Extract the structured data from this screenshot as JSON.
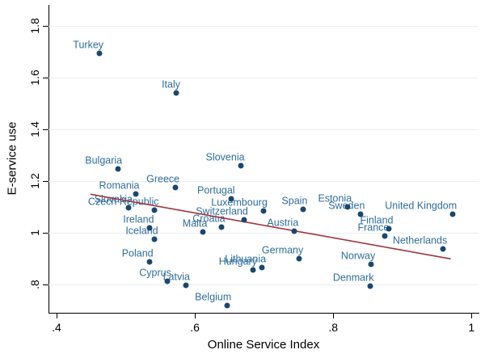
{
  "chart_data": {
    "type": "scatter",
    "title": "",
    "xlabel": "Online Service Index",
    "ylabel": "E-service use",
    "xlim": [
      0.388,
      1.01
    ],
    "ylim": [
      0.692,
      1.882
    ],
    "grid": "horizontal-only",
    "x_ticks": [
      {
        "label": ".4",
        "value": 0.4
      },
      {
        "label": ".6",
        "value": 0.6
      },
      {
        "label": ".8",
        "value": 0.8
      },
      {
        "label": "1",
        "value": 1.0
      }
    ],
    "y_ticks": [
      {
        "label": ".8",
        "value": 0.8
      },
      {
        "label": "1",
        "value": 1.0
      },
      {
        "label": "1.2",
        "value": 1.2
      },
      {
        "label": "1.4",
        "value": 1.4
      },
      {
        "label": "1.6",
        "value": 1.6
      },
      {
        "label": "1.8",
        "value": 1.8
      }
    ],
    "points": [
      {
        "label": "Turkey",
        "x": 0.462,
        "y": 1.696
      },
      {
        "label": "Italy",
        "x": 0.573,
        "y": 1.541
      },
      {
        "label": "Bulgaria",
        "x": 0.489,
        "y": 1.247
      },
      {
        "label": "Slovenia",
        "x": 0.666,
        "y": 1.26
      },
      {
        "label": "Greece",
        "x": 0.572,
        "y": 1.177
      },
      {
        "label": "Romania",
        "x": 0.514,
        "y": 1.151
      },
      {
        "label": "Slovakia",
        "x": 0.504,
        "y": 1.098
      },
      {
        "label": "Czech Republic",
        "x": 0.542,
        "y": 1.088
      },
      {
        "label": "Ireland",
        "x": 0.535,
        "y": 1.02
      },
      {
        "label": "Iceland",
        "x": 0.541,
        "y": 0.976
      },
      {
        "label": "Portugal",
        "x": 0.652,
        "y": 1.132
      },
      {
        "label": "Luxembourg",
        "x": 0.699,
        "y": 1.085
      },
      {
        "label": "Switzerland",
        "x": 0.671,
        "y": 1.051
      },
      {
        "label": "Croatia",
        "x": 0.638,
        "y": 1.023
      },
      {
        "label": "Malta",
        "x": 0.612,
        "y": 1.004
      },
      {
        "label": "Spain",
        "x": 0.757,
        "y": 1.091
      },
      {
        "label": "Estonia",
        "x": 0.821,
        "y": 1.101
      },
      {
        "label": "Sweden",
        "x": 0.84,
        "y": 1.072
      },
      {
        "label": "Austria",
        "x": 0.744,
        "y": 1.007
      },
      {
        "label": "Finland",
        "x": 0.881,
        "y": 1.017
      },
      {
        "label": "France",
        "x": 0.875,
        "y": 0.988
      },
      {
        "label": "United Kingdom",
        "x": 0.973,
        "y": 1.073
      },
      {
        "label": "Netherlands",
        "x": 0.959,
        "y": 0.937
      },
      {
        "label": "Germany",
        "x": 0.751,
        "y": 0.901
      },
      {
        "label": "Lithuania",
        "x": 0.697,
        "y": 0.867
      },
      {
        "label": "Hungary",
        "x": 0.684,
        "y": 0.856
      },
      {
        "label": "Norway",
        "x": 0.855,
        "y": 0.88
      },
      {
        "label": "Denmark",
        "x": 0.853,
        "y": 0.795
      },
      {
        "label": "Poland",
        "x": 0.534,
        "y": 0.888
      },
      {
        "label": "Cyprus",
        "x": 0.56,
        "y": 0.814
      },
      {
        "label": "Latvia",
        "x": 0.587,
        "y": 0.797
      },
      {
        "label": "Belgium",
        "x": 0.647,
        "y": 0.721
      }
    ],
    "trend_line": {
      "x1": 0.449,
      "y1": 1.15,
      "x2": 0.97,
      "y2": 0.9
    },
    "colors": {
      "marker": "#1a476f",
      "point_label": "#2f6d9c",
      "trend": "#a0353f",
      "grid": "#e9eff1",
      "axis": "#000000",
      "background": "#ffffff"
    }
  }
}
